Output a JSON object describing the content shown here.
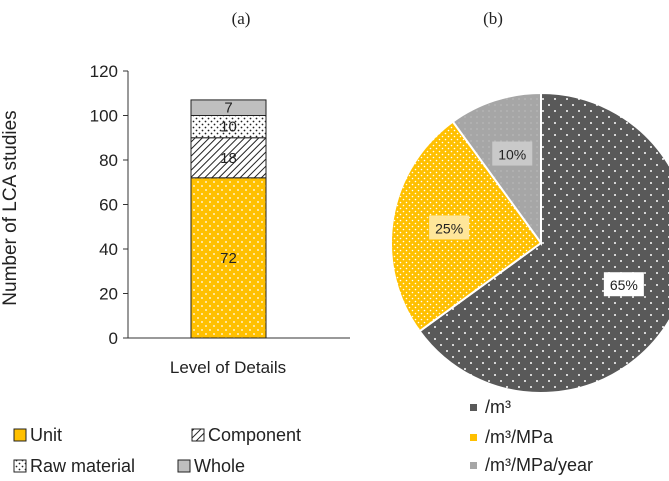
{
  "figure": {
    "header_caption": "",
    "panel_labels": [
      "(a)",
      "(b)"
    ]
  },
  "colors": {
    "unit": "#FFC000",
    "component": "#FFFFFF",
    "raw_material": "#FFFFFF",
    "whole": "#BFBFBF",
    "m3": "#595959",
    "m3_mpa": "#FFC000",
    "m3_mpa_year": "#A6A6A6"
  },
  "chart_data": [
    {
      "type": "bar",
      "stacked": true,
      "categories": [
        "Level of Details"
      ],
      "series": [
        {
          "name": "Unit",
          "values": [
            72
          ],
          "pattern": "dotted",
          "label": "72"
        },
        {
          "name": "Component",
          "values": [
            18
          ],
          "pattern": "diagonal-hatch",
          "label": "18"
        },
        {
          "name": "Raw material",
          "values": [
            10
          ],
          "pattern": "dotted",
          "label": "10"
        },
        {
          "name": "Whole",
          "values": [
            7
          ],
          "pattern": "solid",
          "label": "7"
        }
      ],
      "xlabel": "Level of Details",
      "ylabel": "Number of LCA studies",
      "ylim": [
        0,
        120
      ],
      "yticks": [
        "0",
        "20",
        "40",
        "60",
        "80",
        "100",
        "120"
      ],
      "grid": false,
      "legend": [
        "Unit",
        "Component",
        "Raw material",
        "Whole"
      ],
      "legend_position": "bottom"
    },
    {
      "type": "pie",
      "slices": [
        {
          "name": "/m³",
          "value": 65,
          "label": "65%"
        },
        {
          "name": "/m³/MPa",
          "value": 25,
          "label": "25%"
        },
        {
          "name": "/m³/MPa/year",
          "value": 10,
          "label": "10%"
        }
      ],
      "legend": [
        "/m³",
        "/m³/MPa",
        "/m³/MPa/year"
      ],
      "legend_position": "bottom"
    }
  ]
}
